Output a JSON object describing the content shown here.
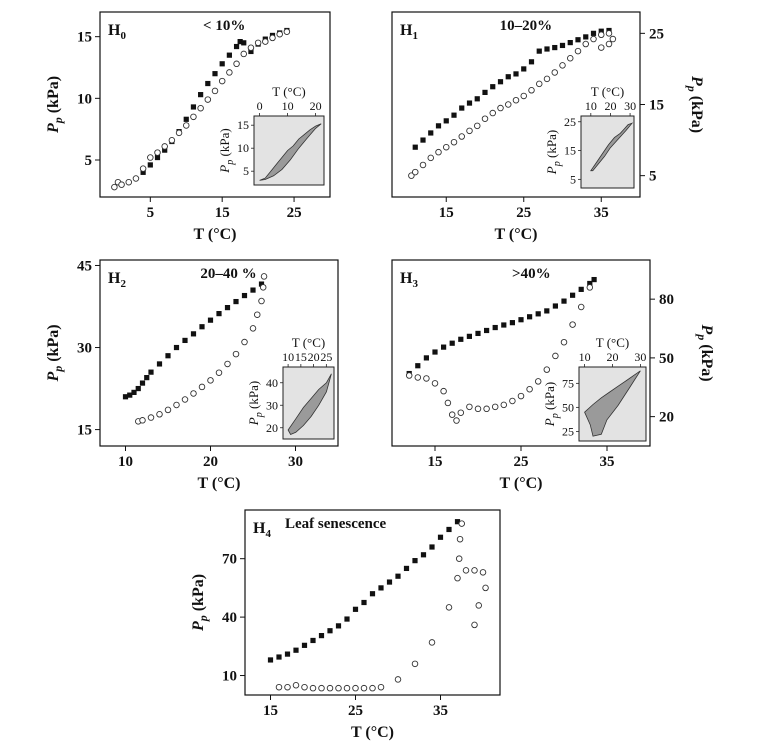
{
  "chart_data": [
    {
      "type": "scatter",
      "label": "H",
      "label_sub": "0",
      "title": "< 10%",
      "xlabel": "T (°C)",
      "ylabel": "Pp (kPa)",
      "ylabel_sub": "p",
      "xlim": [
        -2,
        30
      ],
      "ylim": [
        2,
        17
      ],
      "xticks": [
        5,
        15,
        25
      ],
      "yticks": [
        5,
        10,
        15
      ],
      "yaxis_side": "left",
      "series": [
        {
          "marker": "filled-square",
          "x": [
            4,
            5,
            6,
            7,
            8,
            9,
            10,
            11,
            12,
            13,
            14,
            15,
            16,
            17,
            17.5,
            18,
            19,
            20,
            21,
            22,
            23,
            24
          ],
          "y": [
            4,
            4.6,
            5.2,
            5.8,
            6.5,
            7.3,
            8.3,
            9.3,
            10.3,
            11.2,
            12,
            12.8,
            13.5,
            14.2,
            14.6,
            14.5,
            13.8,
            14.4,
            14.8,
            15.1,
            15.3,
            15.5
          ]
        },
        {
          "marker": "open-circle",
          "x": [
            0,
            0.5,
            1,
            2,
            3,
            4,
            5,
            6,
            7,
            8,
            9,
            10,
            11,
            12,
            13,
            14,
            15,
            16,
            17,
            18,
            19,
            20,
            21,
            22,
            23,
            24
          ],
          "y": [
            2.8,
            3.2,
            3.0,
            3.2,
            3.5,
            4.3,
            5.2,
            5.6,
            6.1,
            6.6,
            7.2,
            7.8,
            8.5,
            9.2,
            9.9,
            10.6,
            11.4,
            12.1,
            12.8,
            13.6,
            14.1,
            14.5,
            14.6,
            14.9,
            15.2,
            15.4
          ]
        }
      ],
      "inset": {
        "xlabel": "T (°C)",
        "ylabel": "Pp (kPa)",
        "ylabel_sub": "p",
        "xlim": [
          -2,
          23
        ],
        "ylim": [
          2,
          17
        ],
        "xticks": [
          0,
          10,
          20
        ],
        "yticks": [
          5,
          10,
          15
        ],
        "polygon": [
          [
            0,
            3
          ],
          [
            2,
            3.5
          ],
          [
            4,
            5
          ],
          [
            6,
            6.5
          ],
          [
            8,
            8
          ],
          [
            10,
            9.5
          ],
          [
            12,
            10.5
          ],
          [
            14,
            12
          ],
          [
            16,
            13
          ],
          [
            18,
            14
          ],
          [
            20,
            14.8
          ],
          [
            22,
            15.3
          ],
          [
            20,
            14.3
          ],
          [
            17,
            12.2
          ],
          [
            14,
            10
          ],
          [
            11,
            7.5
          ],
          [
            8,
            5.4
          ],
          [
            5,
            4
          ],
          [
            2,
            3.2
          ]
        ]
      }
    },
    {
      "type": "scatter",
      "label": "H",
      "label_sub": "1",
      "title": "10–20%",
      "xlabel": "T (°C)",
      "ylabel": "Pp (kPa)",
      "ylabel_sub": "p",
      "xlim": [
        8,
        40
      ],
      "ylim": [
        2,
        28
      ],
      "xticks": [
        15,
        25,
        35
      ],
      "yticks": [
        5,
        15,
        25
      ],
      "yaxis_side": "right",
      "series": [
        {
          "marker": "filled-square",
          "x": [
            11,
            12,
            13,
            14,
            15,
            16,
            17,
            18,
            19,
            20,
            21,
            22,
            23,
            24,
            25,
            26,
            27,
            28,
            29,
            30,
            31,
            32,
            33,
            34,
            35,
            36
          ],
          "y": [
            9,
            10,
            11,
            12,
            12.7,
            13.5,
            14.5,
            15.2,
            15.8,
            16.7,
            17.5,
            18.2,
            18.9,
            19.3,
            20,
            21,
            22.5,
            22.8,
            23,
            23.3,
            23.7,
            24.1,
            24.5,
            25,
            25.3,
            25.4
          ]
        },
        {
          "marker": "open-circle",
          "x": [
            10.5,
            11,
            12,
            13,
            14,
            15,
            16,
            17,
            18,
            19,
            20,
            21,
            22,
            23,
            24,
            25,
            26,
            27,
            28,
            29,
            30,
            31,
            32,
            33,
            34,
            35,
            36,
            36.5,
            36,
            35
          ],
          "y": [
            5,
            5.5,
            6.5,
            7.5,
            8.3,
            9,
            9.7,
            10.5,
            11.3,
            12,
            13,
            13.8,
            14.5,
            15,
            15.6,
            16.2,
            17,
            17.9,
            18.6,
            19.5,
            20.5,
            21.5,
            22.5,
            23.5,
            24.2,
            24.8,
            25,
            24.2,
            23.5,
            23
          ]
        }
      ],
      "inset": {
        "xlabel": "T (°C)",
        "ylabel": "Pp (kPa)",
        "ylabel_sub": "p",
        "xlim": [
          5,
          32
        ],
        "ylim": [
          2,
          27
        ],
        "xticks": [
          10,
          20,
          30
        ],
        "yticks": [
          5,
          15,
          25
        ],
        "polygon": [
          [
            10,
            8
          ],
          [
            13,
            11
          ],
          [
            16,
            14
          ],
          [
            19,
            17
          ],
          [
            22,
            19.5
          ],
          [
            25,
            21
          ],
          [
            27,
            22.5
          ],
          [
            29,
            24
          ],
          [
            31,
            24.5
          ],
          [
            28,
            22
          ],
          [
            24,
            19
          ],
          [
            20,
            16
          ],
          [
            17,
            13
          ],
          [
            14,
            10.5
          ],
          [
            11,
            8
          ]
        ]
      }
    },
    {
      "type": "scatter",
      "label": "H",
      "label_sub": "2",
      "title": "20–40 %",
      "xlabel": "T (°C)",
      "ylabel": "Pp (kPa)",
      "ylabel_sub": "p",
      "xlim": [
        7,
        35
      ],
      "ylim": [
        12,
        46
      ],
      "xticks": [
        10,
        20,
        30
      ],
      "yticks": [
        15,
        30,
        45
      ],
      "yaxis_side": "left",
      "series": [
        {
          "marker": "filled-square",
          "x": [
            10,
            10.5,
            11,
            11.5,
            12,
            12.5,
            13,
            14,
            15,
            16,
            17,
            18,
            19,
            20,
            21,
            22,
            23,
            24,
            25,
            26
          ],
          "y": [
            21,
            21.3,
            21.8,
            22.5,
            23.5,
            24.5,
            25.5,
            27,
            28.5,
            30,
            31.3,
            32.5,
            33.8,
            35,
            36.2,
            37.3,
            38.4,
            39.5,
            40.5,
            41.6
          ]
        },
        {
          "marker": "open-circle",
          "x": [
            11.5,
            12,
            13,
            14,
            15,
            16,
            17,
            18,
            19,
            20,
            21,
            22,
            23,
            24,
            25,
            25.5,
            26,
            26.2,
            26.3
          ],
          "y": [
            16.5,
            16.7,
            17.2,
            17.8,
            18.6,
            19.5,
            20.5,
            21.6,
            22.8,
            24,
            25.4,
            27,
            28.8,
            31,
            33.5,
            36,
            38.5,
            41,
            43
          ]
        }
      ],
      "inset": {
        "xlabel": "T (°C)",
        "ylabel": "Pp (kPa)",
        "ylabel_sub": "p",
        "xlim": [
          8,
          28
        ],
        "ylim": [
          15,
          47
        ],
        "xticks": [
          10,
          15,
          20,
          25
        ],
        "yticks": [
          20,
          30,
          40
        ],
        "polygon": [
          [
            10,
            19
          ],
          [
            13,
            24
          ],
          [
            16,
            29
          ],
          [
            19,
            33
          ],
          [
            22,
            37
          ],
          [
            25,
            40
          ],
          [
            27,
            44
          ],
          [
            25,
            36
          ],
          [
            22,
            30
          ],
          [
            19,
            25
          ],
          [
            16,
            21
          ],
          [
            13,
            18
          ],
          [
            11,
            17
          ]
        ]
      }
    },
    {
      "type": "scatter",
      "label": "H",
      "label_sub": "3",
      "title": ">40%",
      "xlabel": "T (°C)",
      "ylabel": "Pp (kPa)",
      "ylabel_sub": "p",
      "xlim": [
        10,
        40
      ],
      "ylim": [
        5,
        100
      ],
      "xticks": [
        15,
        25,
        35
      ],
      "yticks": [
        20,
        50,
        80
      ],
      "yaxis_side": "right",
      "series": [
        {
          "marker": "filled-square",
          "x": [
            12,
            13,
            14,
            15,
            16,
            17,
            18,
            19,
            20,
            21,
            22,
            23,
            24,
            25,
            26,
            27,
            28,
            29,
            30,
            31,
            32,
            33,
            33.5
          ],
          "y": [
            42,
            46,
            50,
            53,
            55.5,
            57.5,
            59.5,
            61,
            62.5,
            64,
            65.5,
            66.8,
            68,
            69.5,
            71,
            72.5,
            74,
            76.5,
            79,
            82,
            85,
            88,
            90
          ]
        },
        {
          "marker": "open-circle",
          "x": [
            12,
            13,
            14,
            15,
            16,
            16.5,
            17,
            17.5,
            18,
            19,
            20,
            21,
            22,
            23,
            24,
            25,
            26,
            27,
            28,
            29,
            30,
            31,
            32,
            33
          ],
          "y": [
            41,
            40,
            39.5,
            37,
            33,
            27,
            21,
            18,
            22,
            25,
            24,
            24,
            25,
            26,
            28,
            30.5,
            34,
            38,
            44,
            51,
            58,
            67,
            76,
            86
          ]
        }
      ],
      "inset": {
        "xlabel": "T (°C)",
        "ylabel": "Pp (kPa)",
        "ylabel_sub": "p",
        "xlim": [
          8,
          32
        ],
        "ylim": [
          15,
          92
        ],
        "xticks": [
          10,
          20,
          30
        ],
        "yticks": [
          25,
          50,
          75
        ],
        "polygon": [
          [
            10,
            45
          ],
          [
            13,
            53
          ],
          [
            16,
            60
          ],
          [
            19,
            66
          ],
          [
            22,
            72
          ],
          [
            25,
            78
          ],
          [
            28,
            84
          ],
          [
            30,
            88
          ],
          [
            26,
            70
          ],
          [
            22,
            52
          ],
          [
            18,
            37
          ],
          [
            16,
            22
          ],
          [
            13,
            20
          ],
          [
            12,
            32
          ]
        ]
      }
    },
    {
      "type": "scatter",
      "label": "H",
      "label_sub": "4",
      "title": "Leaf senescence",
      "xlabel": "T (°C)",
      "ylabel": "Pp (kPa)",
      "ylabel_sub": "p",
      "xlim": [
        12,
        42
      ],
      "ylim": [
        0,
        95
      ],
      "xticks": [
        15,
        25,
        35
      ],
      "yticks": [
        10,
        40,
        70
      ],
      "yaxis_side": "left",
      "series": [
        {
          "marker": "filled-square",
          "x": [
            15,
            16,
            17,
            18,
            19,
            20,
            21,
            22,
            23,
            24,
            25,
            26,
            27,
            28,
            29,
            30,
            31,
            32,
            33,
            34,
            35,
            36,
            37
          ],
          "y": [
            18,
            19.5,
            21,
            23,
            25.5,
            28,
            30.5,
            33,
            35.5,
            39,
            44,
            47.5,
            52,
            55,
            58,
            61,
            65,
            69,
            72,
            76,
            81,
            85,
            89
          ]
        },
        {
          "marker": "open-circle",
          "x": [
            16,
            17,
            18,
            19,
            20,
            21,
            22,
            23,
            24,
            25,
            26,
            27,
            28,
            30,
            32,
            34,
            36,
            37,
            37.2,
            37.3,
            37.5,
            38,
            39,
            40,
            40.3,
            39.5,
            39
          ],
          "y": [
            4,
            4,
            5,
            4,
            3.5,
            3.5,
            3.5,
            3.5,
            3.5,
            3.5,
            3.5,
            3.5,
            4,
            8,
            16,
            27,
            45,
            60,
            70,
            80,
            88,
            64,
            64,
            63,
            55,
            46,
            36
          ]
        }
      ],
      "inset": null
    }
  ]
}
